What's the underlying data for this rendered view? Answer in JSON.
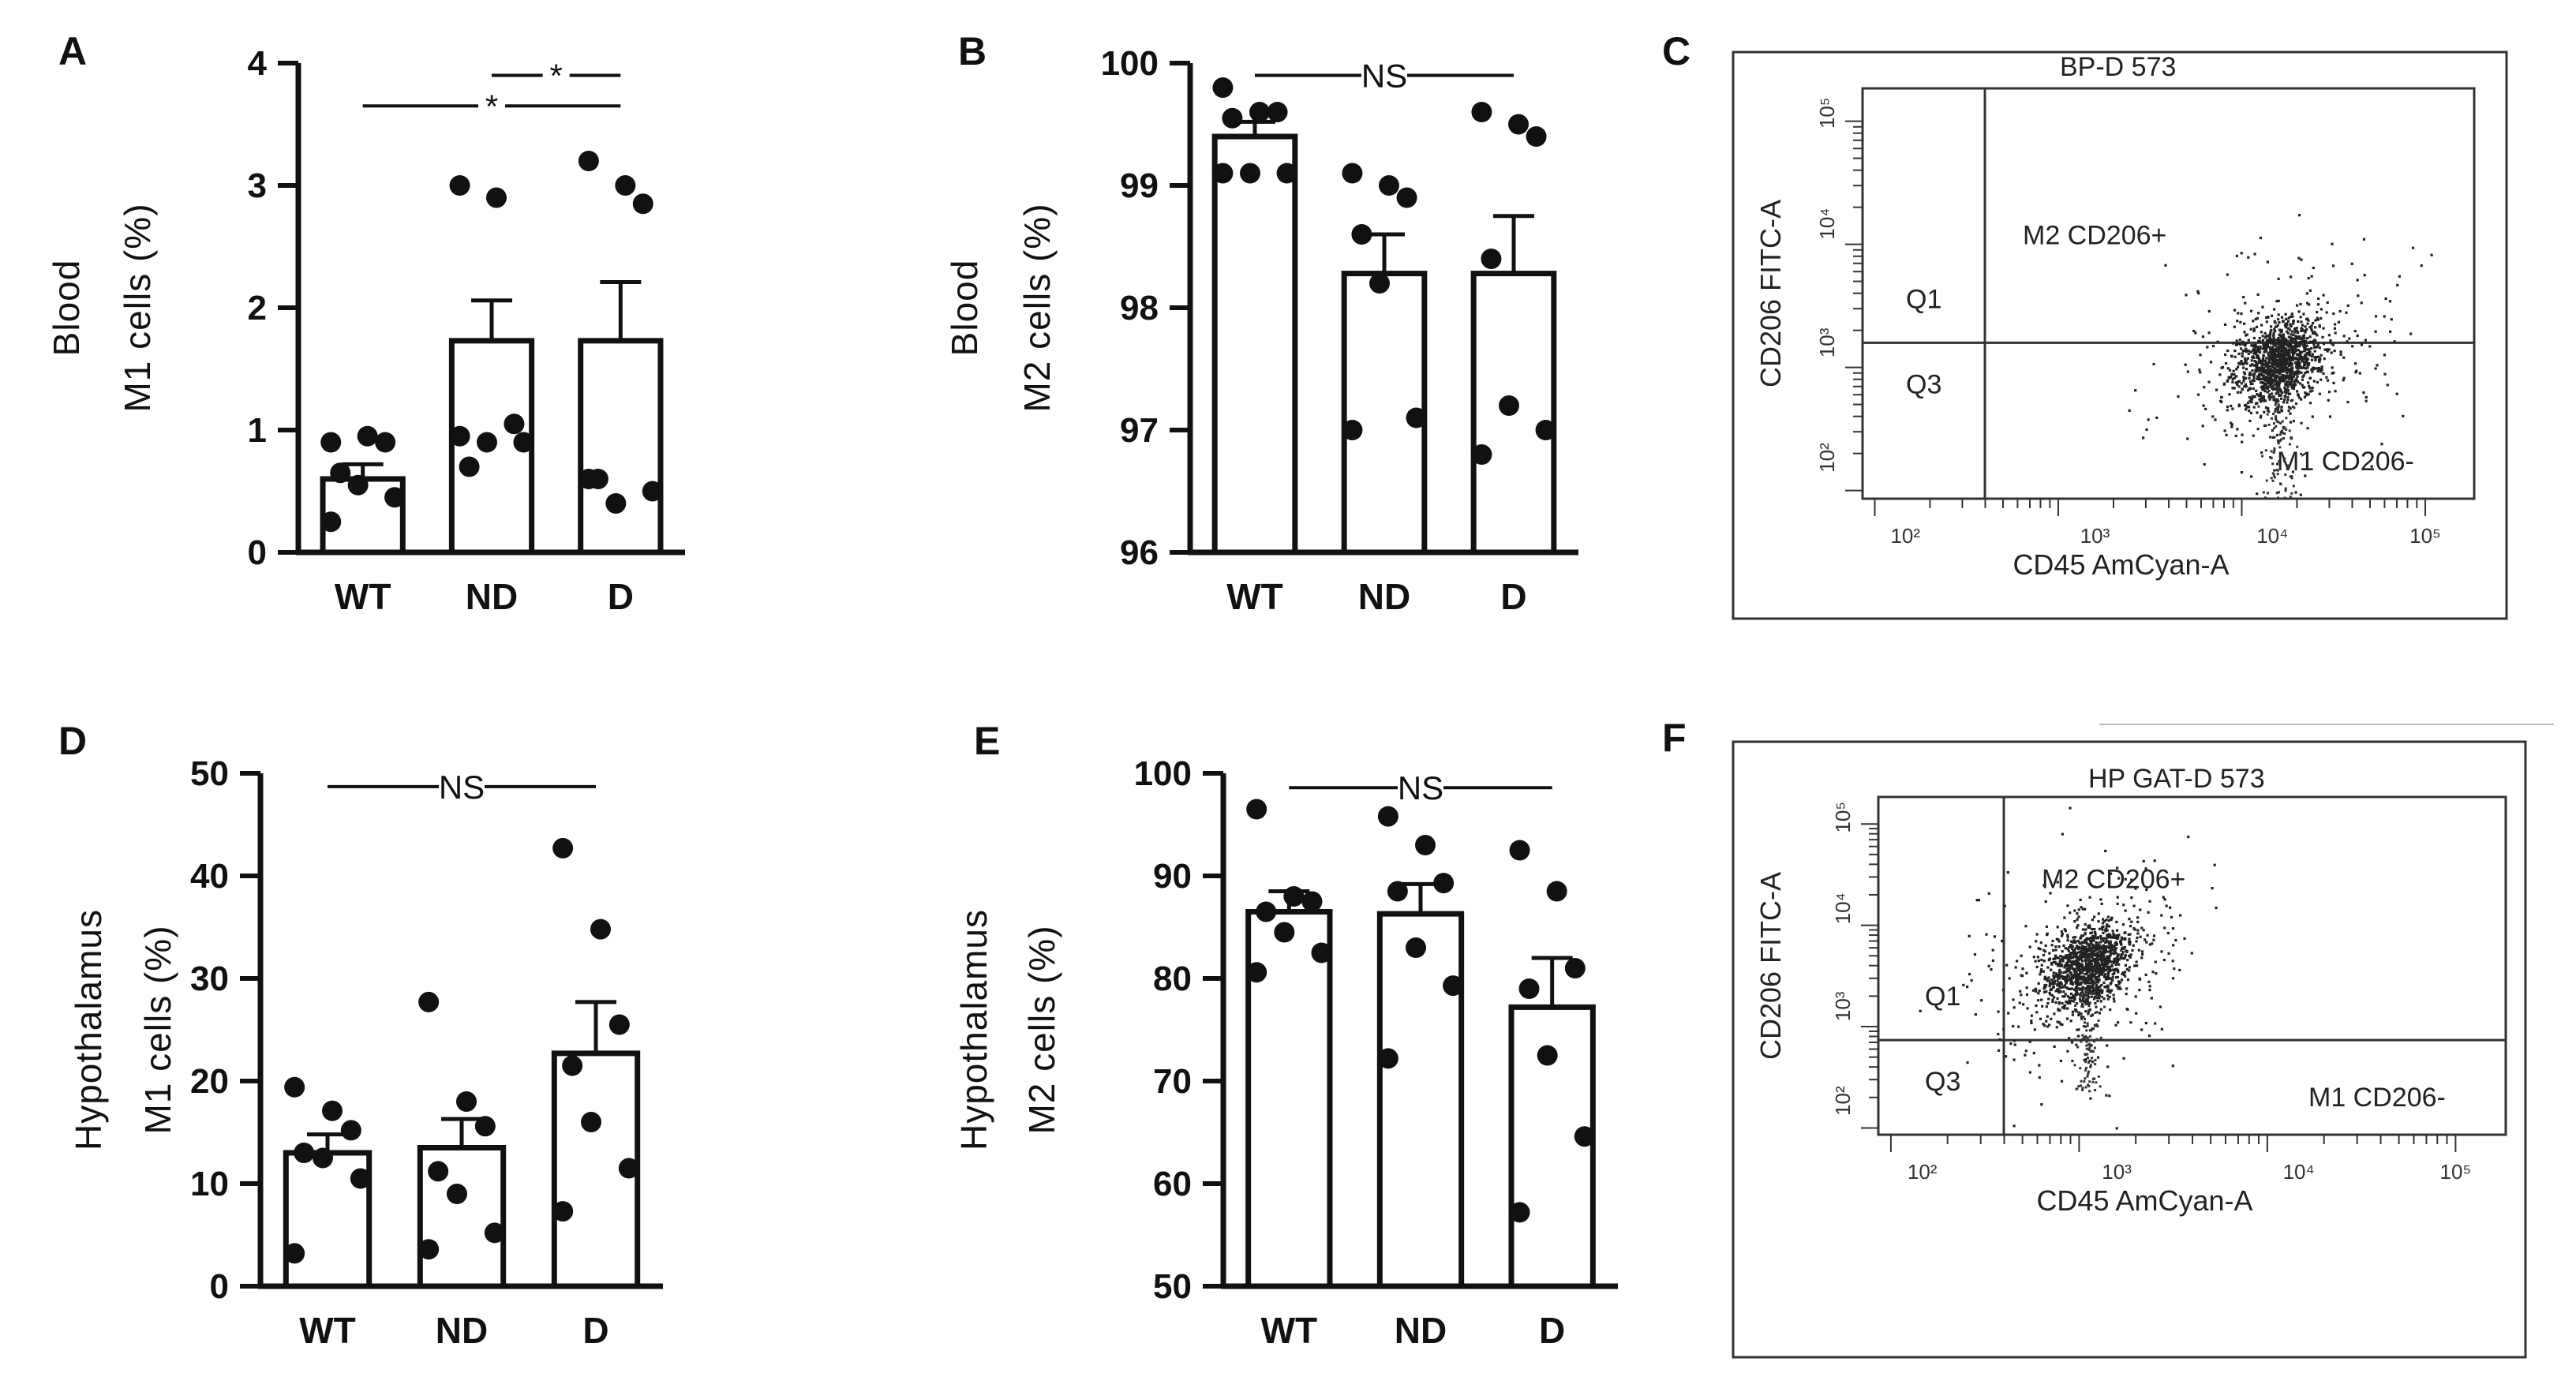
{
  "chart_data": [
    {
      "panel": "A",
      "type": "bar",
      "title": "",
      "ylabel_lines": [
        "Blood",
        "M1 cells (%)"
      ],
      "xlabel": "",
      "categories": [
        "WT",
        "ND",
        "D"
      ],
      "values": [
        0.6,
        1.73,
        1.73
      ],
      "errors": [
        0.12,
        0.33,
        0.48
      ],
      "points": [
        [
          0.9,
          0.95,
          0.9,
          0.65,
          0.55,
          0.45,
          0.25
        ],
        [
          3.0,
          2.9,
          1.05,
          0.7,
          0.9,
          0.9,
          0.95
        ],
        [
          3.2,
          3.0,
          2.85,
          0.6,
          0.4,
          0.5,
          0.6
        ]
      ],
      "ylim": [
        0,
        4
      ],
      "yticks": [
        "0",
        "1",
        "2",
        "3",
        "4"
      ],
      "ytick_values": [
        0,
        1,
        2,
        3,
        4
      ],
      "significance": [
        {
          "from": 0,
          "to": 2,
          "label": "*",
          "y": 3.65
        },
        {
          "from": 1,
          "to": 2,
          "label": "*",
          "y": 3.9
        }
      ]
    },
    {
      "panel": "B",
      "type": "bar",
      "title": "",
      "ylabel_lines": [
        "Blood",
        "M2 cells (%)"
      ],
      "xlabel": "",
      "categories": [
        "WT",
        "ND",
        "D"
      ],
      "values": [
        99.4,
        98.28,
        98.28
      ],
      "errors": [
        0.12,
        0.32,
        0.47
      ],
      "points": [
        [
          99.8,
          99.6,
          99.6,
          99.55,
          99.1,
          99.1,
          99.1
        ],
        [
          99.1,
          99.0,
          98.9,
          98.6,
          98.2,
          97.1,
          97.0
        ],
        [
          99.6,
          99.5,
          99.4,
          98.4,
          97.2,
          97.0,
          96.8
        ]
      ],
      "ylim": [
        96,
        100
      ],
      "yticks": [
        "96",
        "97",
        "98",
        "99",
        "100"
      ],
      "ytick_values": [
        96,
        97,
        98,
        99,
        100
      ],
      "significance": [
        {
          "from": 0,
          "to": 2,
          "label": "NS",
          "y": 99.9
        }
      ]
    },
    {
      "panel": "D",
      "type": "bar",
      "title": "",
      "ylabel_lines": [
        "Hypothalamus",
        "M1 cells (%)"
      ],
      "xlabel": "",
      "categories": [
        "WT",
        "ND",
        "D"
      ],
      "values": [
        13.0,
        13.5,
        22.7
      ],
      "errors": [
        1.8,
        2.8,
        5.0
      ],
      "points": [
        [
          19.4,
          17.1,
          15.2,
          13.0,
          12.5,
          10.5,
          3.2
        ],
        [
          27.7,
          18.0,
          15.6,
          11.2,
          9.0,
          5.2,
          3.6
        ],
        [
          42.7,
          34.8,
          25.5,
          21.5,
          16.0,
          11.5,
          7.3
        ]
      ],
      "ylim": [
        0,
        50
      ],
      "yticks": [
        "0",
        "10",
        "20",
        "30",
        "40",
        "50"
      ],
      "ytick_values": [
        0,
        10,
        20,
        30,
        40,
        50
      ],
      "significance": [
        {
          "from": 0,
          "to": 2,
          "label": "NS",
          "y": 48.7
        }
      ]
    },
    {
      "panel": "E",
      "type": "bar",
      "title": "",
      "ylabel_lines": [
        "Hypothalamus",
        "M2 cells (%)"
      ],
      "xlabel": "",
      "categories": [
        "WT",
        "ND",
        "D"
      ],
      "values": [
        86.5,
        86.3,
        77.2
      ],
      "errors": [
        2.0,
        2.9,
        4.8
      ],
      "points": [
        [
          96.5,
          88.0,
          87.5,
          86.5,
          84.5,
          82.5,
          80.6
        ],
        [
          95.8,
          93.0,
          89.3,
          88.5,
          83.0,
          79.3,
          72.2
        ],
        [
          92.5,
          88.5,
          81.0,
          79.0,
          72.5,
          64.6,
          57.2
        ]
      ],
      "ylim": [
        50,
        100
      ],
      "yticks": [
        "50",
        "60",
        "70",
        "80",
        "90",
        "100"
      ],
      "ytick_values": [
        50,
        60,
        70,
        80,
        90,
        100
      ],
      "significance": [
        {
          "from": 0,
          "to": 2,
          "label": "NS",
          "y": 98.6
        }
      ]
    },
    {
      "panel": "C",
      "type": "scatter",
      "title": "BP-D 573",
      "xlabel": "CD45 AmCyan-A",
      "ylabel": "CD206 FITC-A",
      "quadrants": {
        "q1": "Q1",
        "q3": "Q3",
        "upper_right": "M2 CD206+",
        "lower_right": "M1 CD206-"
      },
      "xticks": [
        "10²",
        "10³",
        "10⁴",
        "10⁵"
      ],
      "yticks": [
        "10²",
        "10³",
        "10⁴",
        "10⁵"
      ]
    },
    {
      "panel": "F",
      "type": "scatter",
      "title": "HP GAT-D 573",
      "xlabel": "CD45 AmCyan-A",
      "ylabel": "CD206 FITC-A",
      "quadrants": {
        "q1": "Q1",
        "q3": "Q3",
        "upper_right": "M2 CD206+",
        "lower_right": "M1 CD206-"
      },
      "xticks": [
        "10²",
        "10³",
        "10⁴",
        "10⁵"
      ],
      "yticks": [
        "10²",
        "10³",
        "10⁴",
        "10⁵"
      ]
    }
  ],
  "panel_letters": {
    "A": "A",
    "B": "B",
    "C": "C",
    "D": "D",
    "E": "E",
    "F": "F"
  }
}
